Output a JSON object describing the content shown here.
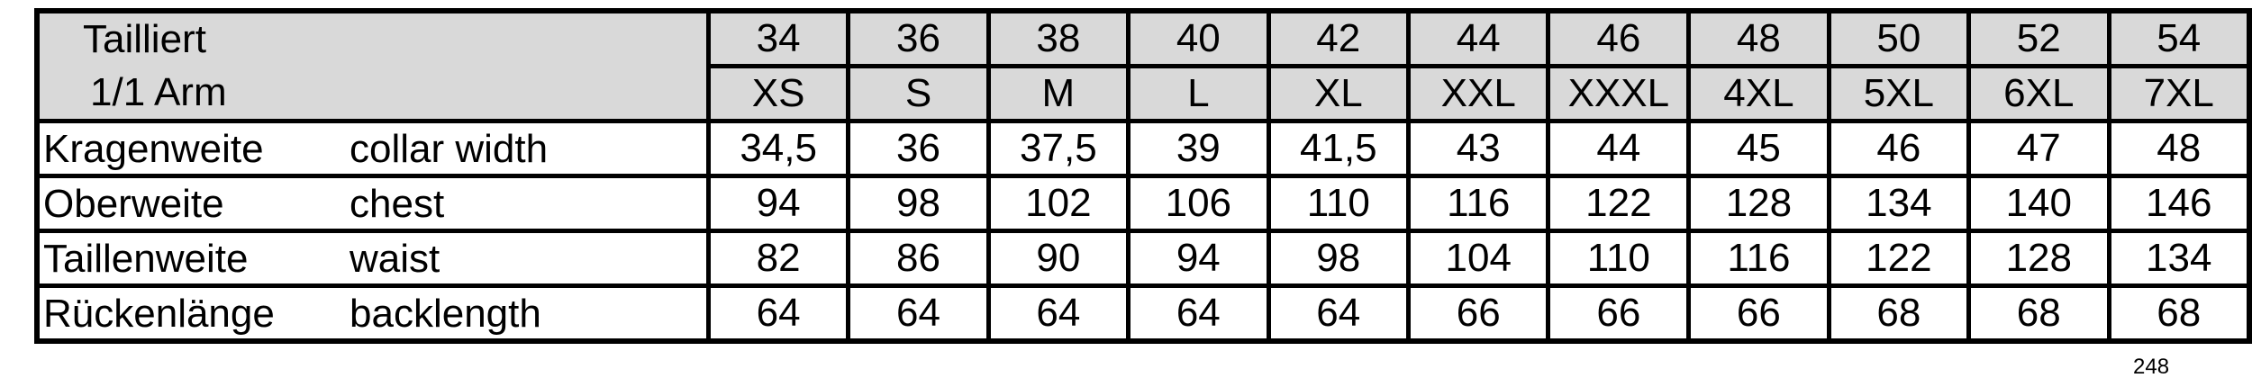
{
  "header": {
    "title_line1": "Tailliert",
    "title_line2": "1/1 Arm",
    "sizes_numeric": [
      "34",
      "36",
      "38",
      "40",
      "42",
      "44",
      "46",
      "48",
      "50",
      "52",
      "54"
    ],
    "sizes_letter": [
      "XS",
      "S",
      "M",
      "L",
      "XL",
      "XXL",
      "XXXL",
      "4XL",
      "5XL",
      "6XL",
      "7XL"
    ]
  },
  "rows": [
    {
      "label_de": "Kragenweite",
      "label_en": "collar width",
      "values": [
        "34,5",
        "36",
        "37,5",
        "39",
        "41,5",
        "43",
        "44",
        "45",
        "46",
        "47",
        "48"
      ]
    },
    {
      "label_de": "Oberweite",
      "label_en": "chest",
      "values": [
        "94",
        "98",
        "102",
        "106",
        "110",
        "116",
        "122",
        "128",
        "134",
        "140",
        "146"
      ]
    },
    {
      "label_de": "Taillenweite",
      "label_en": "waist",
      "values": [
        "82",
        "86",
        "90",
        "94",
        "98",
        "104",
        "110",
        "116",
        "122",
        "128",
        "134"
      ]
    },
    {
      "label_de": "Rückenlänge",
      "label_en": "backlength",
      "values": [
        "64",
        "64",
        "64",
        "64",
        "64",
        "66",
        "66",
        "66",
        "68",
        "68",
        "68"
      ]
    }
  ],
  "page_number": "248",
  "colors": {
    "header_bg": "#d9d9d9",
    "border": "#000000"
  }
}
